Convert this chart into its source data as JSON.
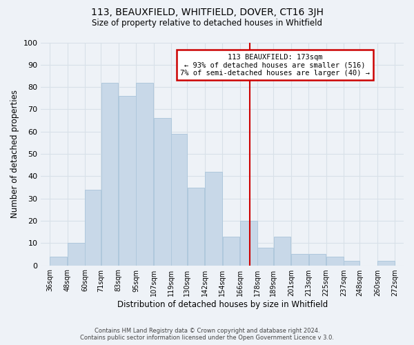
{
  "title": "113, BEAUXFIELD, WHITFIELD, DOVER, CT16 3JH",
  "subtitle": "Size of property relative to detached houses in Whitfield",
  "xlabel": "Distribution of detached houses by size in Whitfield",
  "ylabel": "Number of detached properties",
  "footer_line1": "Contains HM Land Registry data © Crown copyright and database right 2024.",
  "footer_line2": "Contains public sector information licensed under the Open Government Licence v 3.0.",
  "bar_left_edges": [
    36,
    48,
    60,
    71,
    83,
    95,
    107,
    119,
    130,
    142,
    154,
    166,
    178,
    189,
    201,
    213,
    225,
    237,
    248,
    260
  ],
  "bar_widths": [
    12,
    12,
    11,
    12,
    12,
    12,
    12,
    11,
    12,
    12,
    12,
    12,
    11,
    12,
    12,
    12,
    12,
    11,
    12,
    12
  ],
  "bar_heights": [
    4,
    10,
    34,
    82,
    76,
    82,
    66,
    59,
    35,
    42,
    13,
    20,
    8,
    13,
    5,
    5,
    4,
    2,
    0,
    2
  ],
  "bar_color": "#c8d8e8",
  "bar_edgecolor": "#afc8dc",
  "x_tick_labels": [
    "36sqm",
    "48sqm",
    "60sqm",
    "71sqm",
    "83sqm",
    "95sqm",
    "107sqm",
    "119sqm",
    "130sqm",
    "142sqm",
    "154sqm",
    "166sqm",
    "178sqm",
    "189sqm",
    "201sqm",
    "213sqm",
    "225sqm",
    "237sqm",
    "248sqm",
    "260sqm",
    "272sqm"
  ],
  "x_tick_positions": [
    36,
    48,
    60,
    71,
    83,
    95,
    107,
    119,
    130,
    142,
    154,
    166,
    178,
    189,
    201,
    213,
    225,
    237,
    248,
    260,
    272
  ],
  "ylim": [
    0,
    100
  ],
  "xlim": [
    30,
    278
  ],
  "yticks": [
    0,
    10,
    20,
    30,
    40,
    50,
    60,
    70,
    80,
    90,
    100
  ],
  "property_line_x": 173,
  "property_line_color": "#cc0000",
  "annotation_title": "113 BEAUXFIELD: 173sqm",
  "annotation_line1": "← 93% of detached houses are smaller (516)",
  "annotation_line2": "7% of semi-detached houses are larger (40) →",
  "annotation_box_edgecolor": "#cc0000",
  "annotation_box_facecolor": "#ffffff",
  "grid_color": "#d8e0e8",
  "background_color": "#eef2f7"
}
